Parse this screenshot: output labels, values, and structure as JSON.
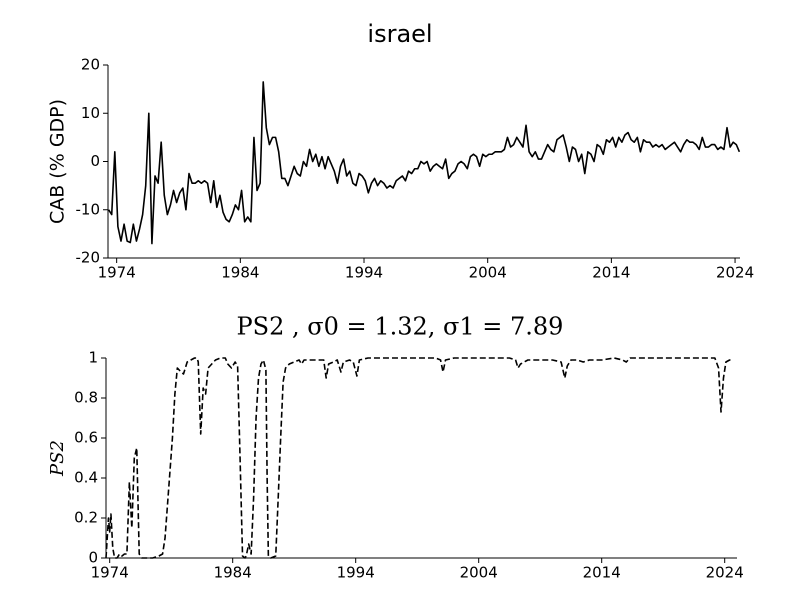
{
  "chart_data": [
    {
      "type": "line",
      "title": "israel",
      "ylabel": "CAB (% GDP)",
      "color": "#000000",
      "line_style": "solid",
      "xlim": [
        1973.3,
        2024.4
      ],
      "xticks": [
        1974,
        1984,
        1994,
        2004,
        2014,
        2024
      ],
      "ylim": [
        -20,
        20
      ],
      "yticks": [
        -20,
        -10,
        0,
        10,
        20
      ],
      "x": [
        1973.35,
        1973.6,
        1973.85,
        1974.1,
        1974.35,
        1974.6,
        1974.85,
        1975.1,
        1975.35,
        1975.6,
        1975.85,
        1976.1,
        1976.35,
        1976.6,
        1976.85,
        1977.1,
        1977.35,
        1977.6,
        1977.85,
        1978.1,
        1978.35,
        1978.6,
        1978.85,
        1979.1,
        1979.35,
        1979.6,
        1979.85,
        1980.1,
        1980.35,
        1980.6,
        1980.85,
        1981.1,
        1981.35,
        1981.6,
        1981.85,
        1982.1,
        1982.35,
        1982.6,
        1982.85,
        1983.1,
        1983.35,
        1983.6,
        1983.85,
        1984.1,
        1984.35,
        1984.6,
        1984.85,
        1985.1,
        1985.35,
        1985.6,
        1985.85,
        1986.1,
        1986.35,
        1986.6,
        1986.85,
        1987.1,
        1987.35,
        1987.6,
        1987.85,
        1988.1,
        1988.35,
        1988.6,
        1988.85,
        1989.1,
        1989.35,
        1989.6,
        1989.85,
        1990.1,
        1990.35,
        1990.6,
        1990.85,
        1991.1,
        1991.35,
        1991.6,
        1991.85,
        1992.1,
        1992.35,
        1992.6,
        1992.85,
        1993.1,
        1993.35,
        1993.6,
        1993.85,
        1994.1,
        1994.35,
        1994.6,
        1994.85,
        1995.1,
        1995.35,
        1995.6,
        1995.85,
        1996.1,
        1996.35,
        1996.6,
        1996.85,
        1997.1,
        1997.35,
        1997.6,
        1997.85,
        1998.1,
        1998.35,
        1998.6,
        1998.85,
        1999.1,
        1999.35,
        1999.6,
        1999.85,
        2000.1,
        2000.35,
        2000.6,
        2000.85,
        2001.1,
        2001.35,
        2001.6,
        2001.85,
        2002.1,
        2002.35,
        2002.6,
        2002.85,
        2003.1,
        2003.35,
        2003.6,
        2003.85,
        2004.1,
        2004.35,
        2004.6,
        2004.85,
        2005.1,
        2005.35,
        2005.6,
        2005.85,
        2006.1,
        2006.35,
        2006.6,
        2006.85,
        2007.1,
        2007.35,
        2007.6,
        2007.85,
        2008.1,
        2008.35,
        2008.6,
        2008.85,
        2009.1,
        2009.35,
        2009.6,
        2009.85,
        2010.1,
        2010.35,
        2010.6,
        2010.85,
        2011.1,
        2011.35,
        2011.6,
        2011.85,
        2012.1,
        2012.35,
        2012.6,
        2012.85,
        2013.1,
        2013.35,
        2013.6,
        2013.85,
        2014.1,
        2014.35,
        2014.6,
        2014.85,
        2015.1,
        2015.35,
        2015.6,
        2015.85,
        2016.1,
        2016.35,
        2016.6,
        2016.85,
        2017.1,
        2017.35,
        2017.6,
        2017.85,
        2018.1,
        2018.35,
        2018.6,
        2018.85,
        2019.1,
        2019.35,
        2019.6,
        2019.85,
        2020.1,
        2020.35,
        2020.6,
        2020.85,
        2021.1,
        2021.35,
        2021.6,
        2021.85,
        2022.1,
        2022.35,
        2022.6,
        2022.85,
        2023.1,
        2023.35,
        2023.6,
        2023.85,
        2024.1,
        2024.35
      ],
      "values": [
        -10,
        -11,
        2,
        -13.5,
        -16.5,
        -13,
        -16.5,
        -16.8,
        -13,
        -16.5,
        -14,
        -11,
        -5,
        10,
        -17,
        -3,
        -4.5,
        4,
        -7,
        -11,
        -9,
        -6,
        -8.5,
        -6.5,
        -5.5,
        -10,
        -2.5,
        -4.5,
        -4.5,
        -4,
        -4.5,
        -4,
        -4.5,
        -8.5,
        -4,
        -9.5,
        -7,
        -10.5,
        -12,
        -12.5,
        -11,
        -9,
        -10,
        -6,
        -12.5,
        -11.5,
        -12.5,
        5,
        -6,
        -4.5,
        16.5,
        7,
        3.5,
        5,
        5,
        2,
        -3.5,
        -3.5,
        -5,
        -3,
        -1,
        -2.5,
        -3,
        0,
        -1,
        2.5,
        0,
        1.5,
        -1,
        1,
        -1.5,
        1,
        -0.5,
        -2,
        -4.5,
        -1,
        0.5,
        -3,
        -2,
        -4.5,
        -5,
        -2.5,
        -3,
        -4,
        -6.5,
        -4.5,
        -3.5,
        -5,
        -4,
        -4.5,
        -5.5,
        -5,
        -5.5,
        -4,
        -3.5,
        -3,
        -4,
        -2,
        -2.5,
        -1.5,
        -1.5,
        0,
        -0.5,
        0,
        -2,
        -1,
        -0.5,
        -1,
        -1.5,
        0.5,
        -3.5,
        -2.5,
        -2,
        -0.5,
        0,
        -0.5,
        -1.5,
        1,
        1.5,
        1,
        -1,
        1.5,
        1,
        1.5,
        1.5,
        2,
        2,
        2,
        2.5,
        5,
        3,
        3.5,
        5,
        4,
        3,
        7.5,
        2,
        1,
        2,
        0.5,
        0.5,
        2,
        3.5,
        2.5,
        2,
        4.5,
        5,
        5.5,
        3,
        0,
        3,
        2.5,
        0,
        1.5,
        -2.5,
        2,
        1.5,
        0,
        3.5,
        3,
        1.5,
        4.5,
        4,
        5,
        3,
        5,
        4,
        5.5,
        6,
        4.5,
        4,
        5,
        2,
        4.5,
        4,
        4,
        3,
        3.5,
        3,
        3.5,
        2.5,
        3,
        3.5,
        4,
        3,
        2,
        3.5,
        4.5,
        4,
        4,
        3.5,
        2.5,
        5,
        3,
        3,
        3.5,
        3.5,
        2.5,
        3,
        2.5,
        7,
        3,
        4,
        3.5,
        2
      ]
    },
    {
      "type": "line",
      "title": "PS2 , σ0 = 1.32, σ1 = 7.89",
      "ylabel": "PS2",
      "color": "#000000",
      "line_style": "dashed",
      "xlim": [
        1973.7,
        2025.0
      ],
      "xticks": [
        1974,
        1984,
        1994,
        2004,
        2014,
        2024
      ],
      "ylim": [
        0,
        1
      ],
      "yticks": [
        0,
        0.2,
        0.4,
        0.6,
        0.8,
        1
      ],
      "x": [
        1973.7,
        1973.9,
        1974.0,
        1974.1,
        1974.25,
        1974.4,
        1974.6,
        1974.8,
        1975.0,
        1975.2,
        1975.4,
        1975.6,
        1975.8,
        1976.0,
        1976.2,
        1976.4,
        1976.6,
        1977.0,
        1977.5,
        1978.0,
        1978.3,
        1978.5,
        1978.8,
        1979.1,
        1979.3,
        1979.5,
        1979.8,
        1980.0,
        1980.3,
        1980.6,
        1980.9,
        1981.1,
        1981.2,
        1981.4,
        1981.6,
        1981.8,
        1982.0,
        1982.3,
        1982.6,
        1983.0,
        1983.4,
        1983.6,
        1983.9,
        1984.2,
        1984.4,
        1984.6,
        1984.8,
        1985.0,
        1985.1,
        1985.3,
        1985.5,
        1985.7,
        1985.9,
        1986.1,
        1986.3,
        1986.5,
        1986.7,
        1986.8,
        1986.9,
        1987.1,
        1987.5,
        1987.7,
        1987.9,
        1988.1,
        1988.3,
        1988.6,
        1989.0,
        1989.4,
        1989.6,
        1989.8,
        1990.2,
        1991.0,
        1991.4,
        1991.6,
        1991.8,
        1992.2,
        1992.5,
        1992.8,
        1993.0,
        1993.5,
        1993.8,
        1994.1,
        1994.3,
        1995.0,
        1998.0,
        2000.5,
        2000.9,
        2001.1,
        2001.3,
        2002.0,
        2005.0,
        2006.5,
        2007.0,
        2007.2,
        2007.4,
        2007.7,
        2008.0,
        2009.0,
        2010.0,
        2010.7,
        2011.0,
        2011.2,
        2011.5,
        2012.0,
        2012.5,
        2013.0,
        2014.0,
        2015.0,
        2015.7,
        2016.0,
        2016.3,
        2018.0,
        2020.0,
        2022.0,
        2023.2,
        2023.5,
        2023.7,
        2023.9,
        2024.1,
        2024.4,
        2024.6
      ],
      "values": [
        0,
        0.2,
        0.13,
        0.22,
        0.05,
        0,
        0,
        0.02,
        0.01,
        0.02,
        0.02,
        0.38,
        0.15,
        0.5,
        0.55,
        0.02,
        0,
        0,
        0,
        0.01,
        0.02,
        0.1,
        0.35,
        0.6,
        0.82,
        0.95,
        0.93,
        0.92,
        0.98,
        0.99,
        1,
        1,
        0.98,
        0.62,
        0.85,
        0.82,
        0.95,
        0.97,
        0.99,
        1,
        1,
        0.97,
        0.95,
        0.98,
        0.96,
        0.5,
        0.01,
        0,
        0.01,
        0.07,
        0.02,
        0.3,
        0.7,
        0.9,
        0.97,
        0.99,
        0.94,
        0.4,
        0.01,
        0,
        0.01,
        0.3,
        0.6,
        0.88,
        0.95,
        0.97,
        0.98,
        0.99,
        0.97,
        0.99,
        0.99,
        0.99,
        0.99,
        0.9,
        0.97,
        0.98,
        0.99,
        0.93,
        0.98,
        0.99,
        0.98,
        0.91,
        0.99,
        1,
        1,
        1,
        0.99,
        0.93,
        0.99,
        1,
        1,
        1,
        0.99,
        0.95,
        0.97,
        0.98,
        0.99,
        0.99,
        0.99,
        0.98,
        0.9,
        0.96,
        0.99,
        0.99,
        0.98,
        0.99,
        0.99,
        1,
        0.99,
        0.98,
        1,
        1,
        1,
        1,
        1,
        0.95,
        0.73,
        0.9,
        0.98,
        0.99,
        0.99
      ]
    }
  ]
}
